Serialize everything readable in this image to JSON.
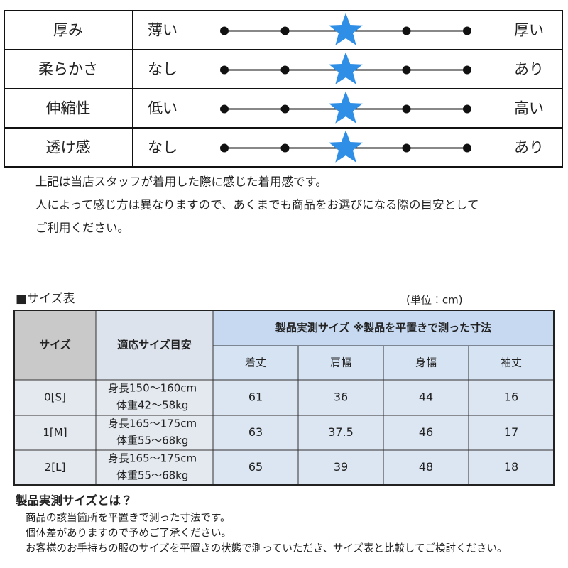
{
  "feel_table": {
    "rows": [
      {
        "label": "厚み",
        "left": "薄い",
        "right": "厚い",
        "level": 3
      },
      {
        "label": "柔らかさ",
        "left": "なし",
        "right": "あり",
        "level": 3
      },
      {
        "label": "伸縮性",
        "left": "低い",
        "right": "高い",
        "level": 3
      },
      {
        "label": "透け感",
        "left": "なし",
        "right": "あり",
        "level": 3
      }
    ]
  },
  "notes": [
    "上記は当店スタッフが着用した際に感じた着用感です。",
    "人によって感じ方は異なりますので、あくまでも商品をお選びになる際の目安として",
    "ご利用ください。"
  ],
  "size_section": {
    "title": "■サイズ表",
    "unit": "(単位：cm)",
    "table": {
      "header": {
        "size": "サイズ",
        "fit": "適応サイズ目安",
        "measured": "製品実測サイズ ※製品を平置きで測った寸法",
        "columns": [
          "着丈",
          "肩幅",
          "身幅",
          "袖丈"
        ]
      },
      "rows": [
        {
          "size": "0[S]",
          "fit": [
            "身長150～160cm",
            "体重42～58kg"
          ],
          "values": [
            "61",
            "36",
            "44",
            "16"
          ]
        },
        {
          "size": "1[M]",
          "fit": [
            "身長165～175cm",
            "体重55～68kg"
          ],
          "values": [
            "63",
            "37.5",
            "46",
            "17"
          ]
        },
        {
          "size": "2[L]",
          "fit": [
            "身長165～175cm",
            "体重55～68kg"
          ],
          "values": [
            "65",
            "39",
            "48",
            "18"
          ]
        }
      ]
    }
  },
  "footer": {
    "title": "製品実測サイズとは？",
    "lines": [
      "商品の該当箇所を平置きで測った寸法です。",
      "個体差がありますので予めご了承ください。",
      "お客様のお手持ちの服のサイズを平置きの状態で測っていただき、サイズ表と比較してご検討ください。"
    ]
  }
}
